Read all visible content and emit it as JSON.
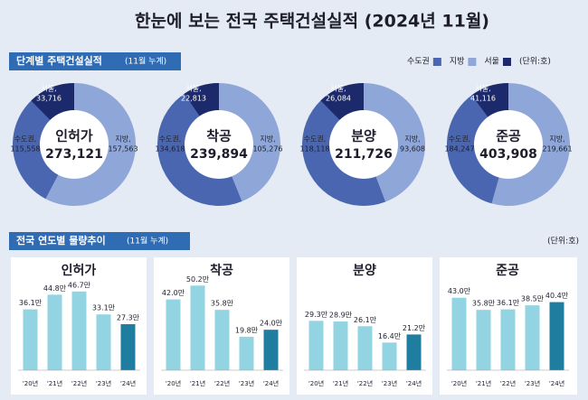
{
  "title": "한눈에 보는 전국 주택건설실적 (2024년 11월)",
  "section_1": {
    "title": "단계별 주택건설실적",
    "note": "(11월 누계)"
  },
  "legend": {
    "names": [
      "수도권",
      "지방",
      "서울"
    ],
    "colors": [
      "#4a66b0",
      "#8ea7d8",
      "#1c2a6b"
    ],
    "unit": "(단위:호)"
  },
  "section_2": {
    "title": "전국 연도별 물량추이",
    "note": "(11월 누계)",
    "unit": "(단위:호)"
  },
  "chart_data": [
    {
      "type": "donut",
      "title": "인허가",
      "total": "273,121",
      "labels": [
        "수도권,",
        "지방,",
        "서울,"
      ],
      "values": [
        115558,
        157563,
        33716
      ],
      "value_labels": [
        "115,558",
        "157,563",
        "33,716"
      ]
    },
    {
      "type": "donut",
      "title": "착공",
      "total": "239,894",
      "labels": [
        "수도권,",
        "지방,",
        "서울,"
      ],
      "values": [
        134618,
        105276,
        22813
      ],
      "value_labels": [
        "134,618",
        "105,276",
        "22,813"
      ]
    },
    {
      "type": "donut",
      "title": "분양",
      "total": "211,726",
      "labels": [
        "수도권,",
        "지방,",
        "서울,"
      ],
      "values": [
        118118,
        93608,
        26084
      ],
      "value_labels": [
        "118,118",
        "93,608",
        "26,084"
      ]
    },
    {
      "type": "donut",
      "title": "준공",
      "total": "403,908",
      "labels": [
        "수도권,",
        "지방,",
        "서울,"
      ],
      "values": [
        184247,
        219661,
        41116
      ],
      "value_labels": [
        "184,247",
        "219,661",
        "41,116"
      ]
    },
    {
      "type": "bar",
      "title": "인허가",
      "categories": [
        "'20년",
        "'21년",
        "'22년",
        "'23년",
        "'24년"
      ],
      "values": [
        36.1,
        44.8,
        46.7,
        33.1,
        27.3
      ],
      "value_labels": [
        "36.1만",
        "44.8만",
        "46.7만",
        "33.1만",
        "27.3만"
      ],
      "colors": [
        "#93d4e2",
        "#93d4e2",
        "#93d4e2",
        "#93d4e2",
        "#1f7d9f"
      ],
      "ylim": [
        0,
        60
      ]
    },
    {
      "type": "bar",
      "title": "착공",
      "categories": [
        "'20년",
        "'21년",
        "'22년",
        "'23년",
        "'24년"
      ],
      "values": [
        42.0,
        50.2,
        35.8,
        19.8,
        24.0
      ],
      "value_labels": [
        "42.0만",
        "50.2만",
        "35.8만",
        "19.8만",
        "24.0만"
      ],
      "colors": [
        "#93d4e2",
        "#93d4e2",
        "#93d4e2",
        "#93d4e2",
        "#1f7d9f"
      ],
      "ylim": [
        0,
        60
      ]
    },
    {
      "type": "bar",
      "title": "분양",
      "categories": [
        "'20년",
        "'21년",
        "'22년",
        "'23년",
        "'24년"
      ],
      "values": [
        29.3,
        28.9,
        26.1,
        16.4,
        21.2
      ],
      "value_labels": [
        "29.3만",
        "28.9만",
        "26.1만",
        "16.4만",
        "21.2만"
      ],
      "colors": [
        "#93d4e2",
        "#93d4e2",
        "#93d4e2",
        "#93d4e2",
        "#1f7d9f"
      ],
      "ylim": [
        0,
        60
      ]
    },
    {
      "type": "bar",
      "title": "준공",
      "categories": [
        "'20년",
        "'21년",
        "'22년",
        "'23년",
        "'24년"
      ],
      "values": [
        43.0,
        35.8,
        36.1,
        38.5,
        40.4
      ],
      "value_labels": [
        "43.0만",
        "35.8만",
        "36.1만",
        "38.5만",
        "40.4만"
      ],
      "colors": [
        "#93d4e2",
        "#93d4e2",
        "#93d4e2",
        "#93d4e2",
        "#1f7d9f"
      ],
      "ylim": [
        0,
        60
      ]
    }
  ]
}
